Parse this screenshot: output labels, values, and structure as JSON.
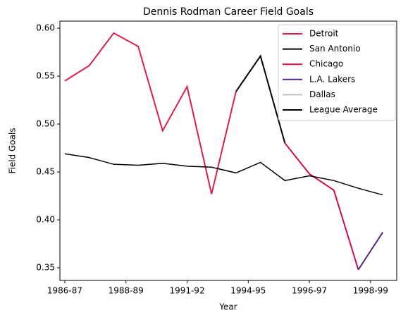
{
  "chart_data": {
    "type": "line",
    "title": "Dennis Rodman Career Field Goals",
    "x_label": "Year",
    "y_label": "Field Goals",
    "x": [
      0,
      1,
      2,
      3,
      4,
      5,
      6,
      7,
      8,
      9,
      10,
      11,
      12,
      13
    ],
    "series": [
      {
        "name": "Detroit",
        "color": "#dc1e4a",
        "values": [
          0.545,
          0.561,
          0.595,
          0.581,
          0.493,
          0.539,
          0.427,
          0.534,
          null,
          null,
          null,
          null,
          null,
          null
        ]
      },
      {
        "name": "San Antonio",
        "color": "#000000",
        "values": [
          null,
          null,
          null,
          null,
          null,
          null,
          null,
          0.534,
          0.571,
          0.48,
          null,
          null,
          null,
          null
        ]
      },
      {
        "name": "Chicago",
        "color": "#ce1141",
        "values": [
          null,
          null,
          null,
          null,
          null,
          null,
          null,
          null,
          null,
          0.48,
          0.448,
          0.431,
          0.348,
          null
        ]
      },
      {
        "name": "L.A. Lakers",
        "color": "#552583",
        "values": [
          null,
          null,
          null,
          null,
          null,
          null,
          null,
          null,
          null,
          null,
          null,
          null,
          0.348,
          0.387
        ]
      },
      {
        "name": "Dallas",
        "color": "#c0c0c0",
        "values": [
          null,
          null,
          null,
          null,
          null,
          null,
          null,
          null,
          null,
          null,
          null,
          null,
          null,
          0.387
        ]
      },
      {
        "name": "League Average",
        "color": "#000000",
        "values": [
          0.469,
          0.465,
          0.458,
          0.457,
          0.459,
          0.456,
          0.455,
          0.449,
          0.46,
          0.441,
          0.446,
          0.441,
          0.433,
          0.426
        ]
      }
    ],
    "xlim": [
      -0.2,
      13.57
    ],
    "xticks": [
      {
        "value": 0,
        "label": "1986-87"
      },
      {
        "value": 2.5,
        "label": "1988-89"
      },
      {
        "value": 5,
        "label": "1991-92"
      },
      {
        "value": 7.5,
        "label": "1994-95"
      },
      {
        "value": 10,
        "label": "1996-97"
      },
      {
        "value": 12.5,
        "label": "1998-99"
      }
    ],
    "ylim": [
      0.3368,
      0.6074
    ],
    "yticks": [
      {
        "value": 0.35,
        "label": "0.35"
      },
      {
        "value": 0.4,
        "label": "0.40"
      },
      {
        "value": 0.45,
        "label": "0.45"
      },
      {
        "value": 0.5,
        "label": "0.50"
      },
      {
        "value": 0.55,
        "label": "0.55"
      },
      {
        "value": 0.6,
        "label": "0.60"
      }
    ],
    "legend": "upper right"
  }
}
